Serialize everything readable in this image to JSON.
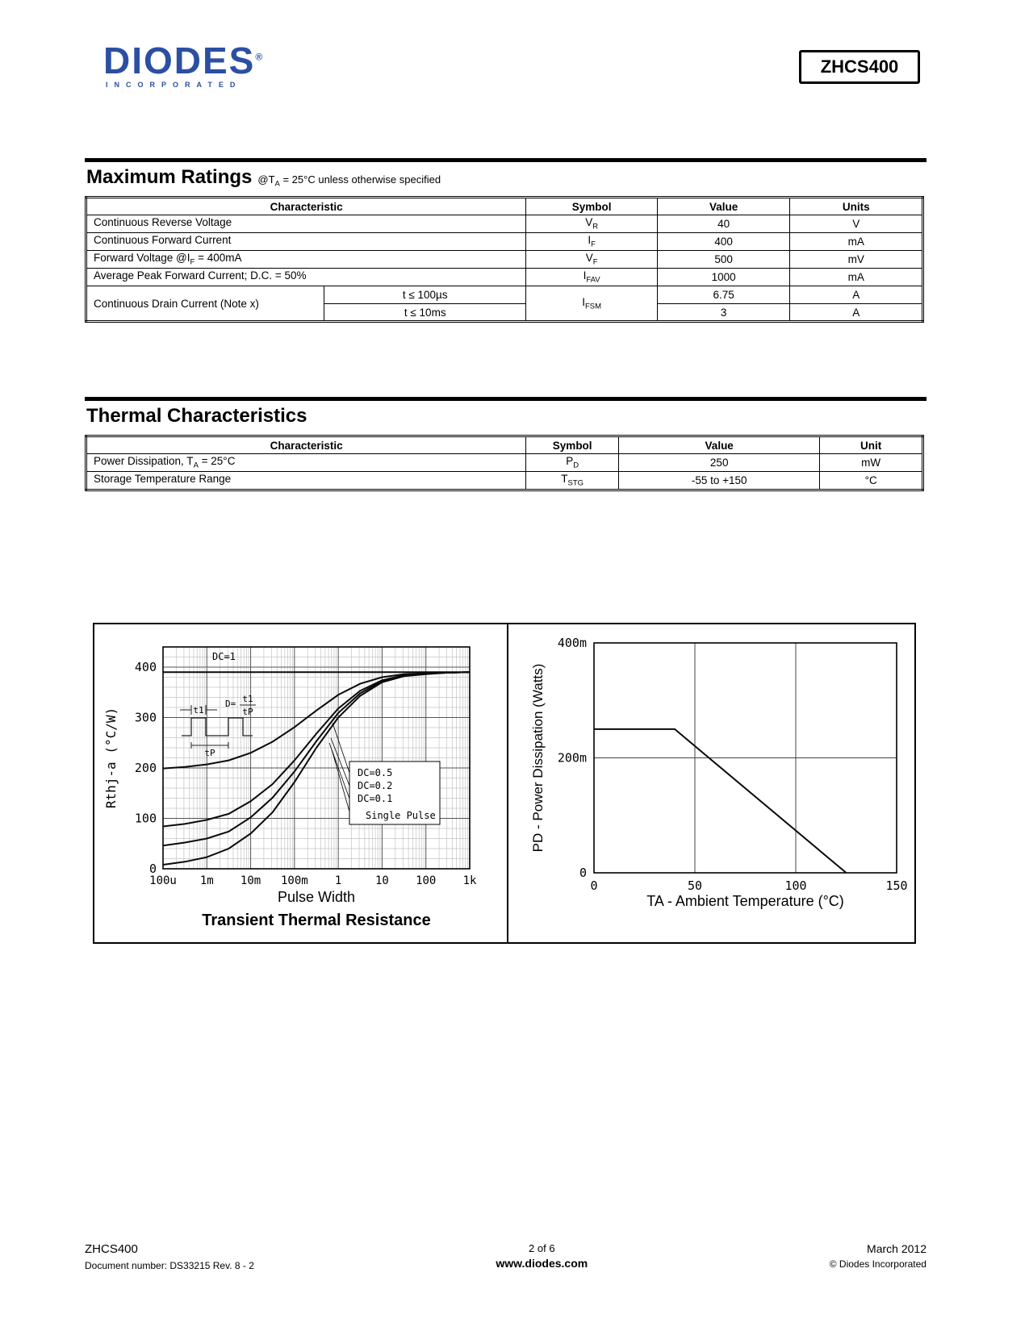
{
  "colors": {
    "brand_blue": "#2b4fa2",
    "ink": "#000000"
  },
  "header": {
    "logo_text": "DIODES",
    "logo_sub": "INCORPORATED",
    "logo_reg": "®",
    "part_number": "ZHCS400"
  },
  "maximum_ratings": {
    "title": "Maximum Ratings",
    "note_pre": "@T",
    "note_sub": "A",
    "note_post": " = 25°C unless otherwise specified",
    "headers": {
      "characteristic": "Characteristic",
      "symbol": "Symbol",
      "value": "Value",
      "units": "Units"
    },
    "rows": [
      {
        "c_pre": "Continuous Reverse Voltage",
        "c_sub": "",
        "c_post": "",
        "sym": "V",
        "sym_sub": "R",
        "value": "40",
        "units": "V"
      },
      {
        "c_pre": "Continuous Forward Current",
        "c_sub": "",
        "c_post": "",
        "sym": "I",
        "sym_sub": "F",
        "value": "400",
        "units": "mA"
      },
      {
        "c_pre": "Forward Voltage @I",
        "c_sub": "F",
        "c_post": " = 400mA",
        "sym": "V",
        "sym_sub": "F",
        "value": "500",
        "units": "mV"
      },
      {
        "c_pre": "Average Peak Forward Current; D.C. = 50%",
        "c_sub": "",
        "c_post": "",
        "sym": "I",
        "sym_sub": "FAV",
        "value": "1000",
        "units": "mA"
      }
    ],
    "group_row": {
      "characteristic": "Continuous Drain Current (Note x)",
      "cond1": "t ≤ 100µs",
      "cond2": "t ≤ 10ms",
      "sym": "I",
      "sym_sub": "FSM",
      "value1": "6.75",
      "value2": "3",
      "units1": "A",
      "units2": "A"
    }
  },
  "thermal": {
    "title": "Thermal Characteristics",
    "headers": {
      "characteristic": "Characteristic",
      "symbol": "Symbol",
      "value": "Value",
      "units": "Unit"
    },
    "rows": [
      {
        "c_pre": "Power Dissipation, T",
        "c_sub": "A",
        "c_post": " = 25°C",
        "sym": "P",
        "sym_sub": "D",
        "value": "250",
        "units": "mW"
      },
      {
        "c_pre": "Storage Temperature Range",
        "c_sub": "",
        "c_post": "",
        "sym": "T",
        "sym_sub": "STG",
        "value": "-55 to +150",
        "units": "°C"
      }
    ]
  },
  "chart_data": [
    {
      "type": "line",
      "title": "Transient Thermal Resistance",
      "xlabel": "Pulse Width",
      "ylabel": "Rthj-a (°C/W)",
      "x_scale": "log-seconds",
      "x_tick_labels": [
        "100u",
        "1m",
        "10m",
        "100m",
        "1",
        "10",
        "100",
        "1k"
      ],
      "x_tick_exponents": [
        -4,
        -3,
        -2,
        -1,
        0,
        1,
        2,
        3
      ],
      "ylim": [
        0,
        440
      ],
      "y_ticks": [
        0,
        100,
        200,
        300,
        400
      ],
      "sample_exponents": [
        -4,
        -3.5,
        -3,
        -2.5,
        -2,
        -1.5,
        -1,
        -0.5,
        0,
        0.5,
        1,
        1.5,
        2,
        2.5,
        3
      ],
      "series": [
        {
          "name": "DC=1",
          "values": [
            390,
            390,
            390,
            390,
            390,
            390,
            390,
            390,
            390,
            390,
            390,
            390,
            390,
            390,
            390
          ]
        },
        {
          "name": "DC=0.5",
          "values": [
            199,
            202,
            207,
            215,
            230,
            252,
            281,
            314,
            345,
            367,
            380,
            386,
            388,
            389,
            390
          ]
        },
        {
          "name": "DC=0.2",
          "values": [
            84,
            89,
            97,
            109,
            134,
            168,
            215,
            268,
            318,
            353,
            374,
            384,
            387,
            389,
            390
          ]
        },
        {
          "name": "DC=0.1",
          "values": [
            46,
            52,
            60,
            74,
            102,
            141,
            193,
            253,
            309,
            348,
            372,
            383,
            387,
            389,
            390
          ]
        },
        {
          "name": "Single Pulse",
          "values": [
            8,
            14,
            23,
            40,
            70,
            112,
            172,
            240,
            300,
            343,
            370,
            382,
            386,
            389,
            390
          ]
        }
      ],
      "inset": {
        "t1": "t1",
        "d_label": "D=",
        "numerator": "t1",
        "denominator": "tP",
        "period_label": "tP"
      }
    },
    {
      "type": "line",
      "title": "",
      "xlabel": "TA - Ambient Temperature (°C)",
      "ylabel": "PD - Power Dissipation (Watts)",
      "xlim": [
        0,
        150
      ],
      "x_ticks": [
        0,
        50,
        100,
        150
      ],
      "ylim": [
        0,
        0.4
      ],
      "y_tick_values": [
        0,
        0.2,
        0.4
      ],
      "y_tick_labels": [
        "0",
        "200m",
        "400m"
      ],
      "series": [
        {
          "name": "power-derating",
          "x": [
            0,
            40,
            125
          ],
          "y": [
            0.25,
            0.25,
            0
          ]
        }
      ]
    }
  ],
  "footer": {
    "part": "ZHCS400",
    "doc": "Document number: DS33215 Rev. 8 - 2",
    "page": "2 of 6",
    "site": "www.diodes.com",
    "date": "March 2012",
    "copyright": "© Diodes Incorporated"
  }
}
